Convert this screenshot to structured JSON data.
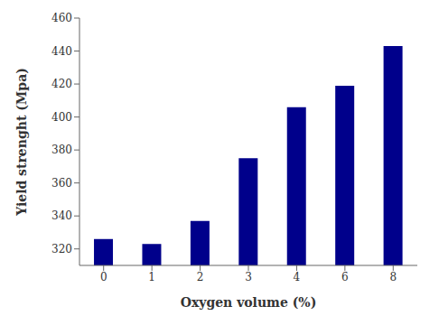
{
  "chart_data": {
    "type": "bar",
    "categories": [
      "0",
      "1",
      "2",
      "3",
      "4",
      "6",
      "8"
    ],
    "values": [
      326,
      323,
      337,
      375,
      406,
      419,
      443
    ],
    "color": "#00008B",
    "xlabel": "Oxygen volume (%)",
    "ylabel": "Yield strenght (Mpa)",
    "ylim": [
      310,
      460
    ],
    "yticks": [
      320,
      340,
      360,
      380,
      400,
      420,
      440,
      460
    ],
    "grid": false
  }
}
